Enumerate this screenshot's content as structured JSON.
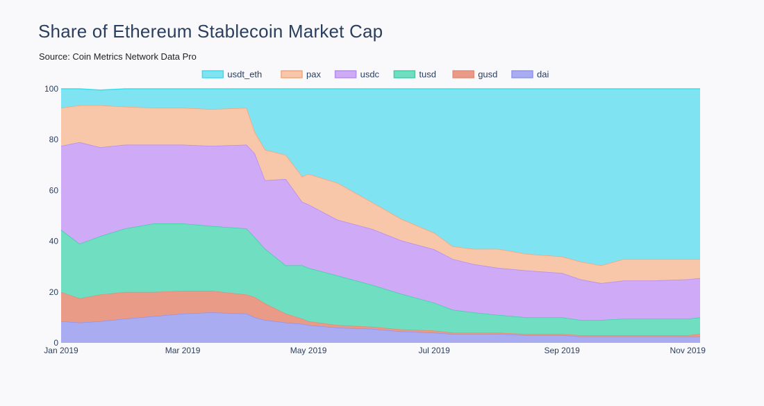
{
  "title": "Share of Ethereum Stablecoin Market Cap",
  "subtitle": "Source: Coin Metrics Network Data Pro",
  "chart_data": {
    "type": "area",
    "stacked": true,
    "x": [
      "2019-01-01",
      "2019-01-10",
      "2019-01-20",
      "2019-02-01",
      "2019-02-15",
      "2019-03-01",
      "2019-03-15",
      "2019-04-01",
      "2019-04-05",
      "2019-04-10",
      "2019-04-20",
      "2019-04-28",
      "2019-05-01",
      "2019-05-15",
      "2019-06-01",
      "2019-06-15",
      "2019-07-01",
      "2019-07-10",
      "2019-07-20",
      "2019-08-01",
      "2019-08-15",
      "2019-09-01",
      "2019-09-10",
      "2019-09-20",
      "2019-10-01",
      "2019-10-15",
      "2019-11-01",
      "2019-11-07"
    ],
    "x_ticks": [
      "Jan 2019",
      "Mar 2019",
      "May 2019",
      "Jul 2019",
      "Sep 2019",
      "Nov 2019"
    ],
    "x_tick_dates": [
      "2019-01-01",
      "2019-03-01",
      "2019-05-01",
      "2019-07-01",
      "2019-09-01",
      "2019-11-01"
    ],
    "ylim": [
      0,
      100
    ],
    "y_ticks": [
      0,
      20,
      40,
      60,
      80,
      100
    ],
    "grid": false,
    "legend_position": "top",
    "xlabel": "",
    "ylabel": "",
    "series": [
      {
        "name": "dai",
        "color": "#8e95f0",
        "fill": "#a9acf1",
        "values": [
          8.5,
          8,
          8.5,
          9.5,
          10.5,
          11.5,
          12,
          11.5,
          10,
          9,
          8,
          7.5,
          7,
          6,
          5.5,
          4.5,
          4,
          3.5,
          3.5,
          3.5,
          3,
          3,
          2.5,
          2.5,
          2.5,
          2.5,
          2.5,
          2.5
        ]
      },
      {
        "name": "gusd",
        "color": "#e58a74",
        "fill": "#ea9b88",
        "values": [
          11.5,
          9.5,
          10.5,
          10.5,
          9.5,
          9,
          8.5,
          7.5,
          8,
          6.5,
          3.5,
          2,
          1.5,
          1,
          0.8,
          0.8,
          0.8,
          0.5,
          0.5,
          0.5,
          0.5,
          0.5,
          0.5,
          0.5,
          0.5,
          0.5,
          0.5,
          1
        ]
      },
      {
        "name": "tusd",
        "color": "#3dd0a6",
        "fill": "#70dec1",
        "values": [
          24.5,
          21.5,
          23,
          25,
          27,
          26.5,
          25.5,
          26,
          23.5,
          21.5,
          19,
          21,
          21,
          19.5,
          16.5,
          14,
          11,
          9,
          8,
          7,
          6.5,
          6.5,
          6,
          6,
          6.5,
          6.5,
          6.5,
          6.5
        ]
      },
      {
        "name": "usdc",
        "color": "#b48cf0",
        "fill": "#cfaaf6",
        "values": [
          33,
          40,
          35,
          33,
          31,
          31,
          31.5,
          33,
          33,
          27,
          34,
          25,
          25,
          22,
          22,
          21,
          21,
          20,
          19,
          18.5,
          18.5,
          17.5,
          16,
          14.5,
          15,
          15,
          15.5,
          15.5
        ]
      },
      {
        "name": "pax",
        "color": "#f4a57a",
        "fill": "#f8c6a8",
        "values": [
          15,
          14.5,
          16.5,
          15,
          14.5,
          14.5,
          14.5,
          14.5,
          8.5,
          12,
          9.5,
          10,
          12,
          14.5,
          10.5,
          8.5,
          6.5,
          5,
          6,
          7.5,
          6.5,
          6.5,
          7,
          7,
          8.5,
          8.5,
          8,
          7.5
        ]
      },
      {
        "name": "usdt_eth",
        "color": "#3ddceb",
        "fill": "#80e3f1",
        "values": [
          7.5,
          6.5,
          6,
          7,
          7.5,
          7.5,
          8,
          7.5,
          17,
          24,
          26,
          34.5,
          33.5,
          37,
          44.7,
          51.2,
          56.7,
          62,
          63,
          63,
          65,
          66,
          68,
          69.5,
          67,
          67,
          67,
          67
        ]
      }
    ]
  }
}
